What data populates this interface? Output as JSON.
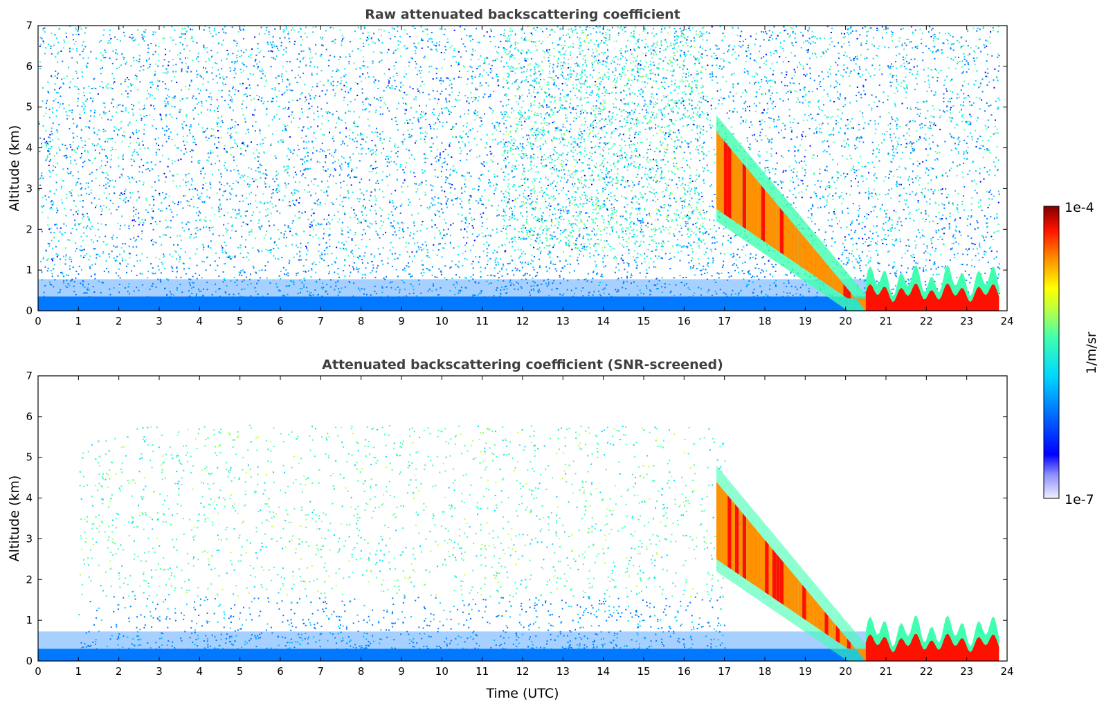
{
  "figure": {
    "xlabel": "Time (UTC)",
    "colorbar": {
      "label": "1/m/sr",
      "min_label": "1e-7",
      "max_label": "1e-4",
      "min": 1e-07,
      "max": 0.0001,
      "scale": "log",
      "colormap": "jet",
      "colors": [
        "#ffffff",
        "#c8c8ff",
        "#0000ff",
        "#00a0ff",
        "#00ffd0",
        "#c0ff40",
        "#ffff00",
        "#ff8000",
        "#ff0000",
        "#800000"
      ]
    }
  },
  "chart_data": [
    {
      "type": "heatmap",
      "title": "Raw attenuated backscattering coefficient",
      "xlabel": "",
      "ylabel": "Altitude (km)",
      "xlim": [
        0,
        24
      ],
      "ylim": [
        0,
        7
      ],
      "xticks": [
        "0",
        "1",
        "2",
        "3",
        "4",
        "5",
        "6",
        "7",
        "8",
        "9",
        "10",
        "11",
        "12",
        "13",
        "14",
        "15",
        "16",
        "17",
        "18",
        "19",
        "20",
        "21",
        "22",
        "23",
        "24"
      ],
      "yticks": [
        "0",
        "1",
        "2",
        "3",
        "4",
        "5",
        "6",
        "7"
      ],
      "grid": false,
      "features": [
        {
          "description": "near-surface blue layer",
          "x": [
            0,
            20.6
          ],
          "y": [
            0,
            0.35
          ],
          "level": 1e-06
        },
        {
          "description": "sparse noise field",
          "x": [
            0,
            23.8
          ],
          "y": [
            0.35,
            7
          ],
          "level": 5e-07
        },
        {
          "description": "green aerosol plume",
          "x": [
            11.5,
            16.5
          ],
          "y": [
            1.5,
            7
          ],
          "level": 3e-06
        },
        {
          "description": "descending aerosol layer",
          "x": [
            16.8,
            20.5
          ],
          "y_top": [
            4.4,
            0
          ],
          "y_bottom": [
            2.5,
            0
          ],
          "level": 3e-05
        },
        {
          "description": "boundary layer",
          "x": [
            20.5,
            23.8
          ],
          "y": [
            0,
            1.0
          ],
          "level": 5e-05
        }
      ]
    },
    {
      "type": "heatmap",
      "title": "Attenuated backscattering coefficient (SNR-screened)",
      "xlabel": "Time (UTC)",
      "ylabel": "Altitude (km)",
      "xlim": [
        0,
        24
      ],
      "ylim": [
        0,
        7
      ],
      "xticks": [
        "0",
        "1",
        "2",
        "3",
        "4",
        "5",
        "6",
        "7",
        "8",
        "9",
        "10",
        "11",
        "12",
        "13",
        "14",
        "15",
        "16",
        "17",
        "18",
        "19",
        "20",
        "21",
        "22",
        "23",
        "24"
      ],
      "yticks": [
        "0",
        "1",
        "2",
        "3",
        "4",
        "5",
        "6",
        "7"
      ],
      "grid": false,
      "features": [
        {
          "description": "near-surface blue layer",
          "x": [
            0,
            20.6
          ],
          "y": [
            0,
            0.3
          ],
          "level": 1e-06
        },
        {
          "description": "screened sparse aerosol",
          "x": [
            1,
            17
          ],
          "y": [
            0.3,
            5.8
          ],
          "level": 2e-06
        },
        {
          "description": "descending aerosol layer",
          "x": [
            16.8,
            20.5
          ],
          "y_top": [
            4.4,
            0
          ],
          "y_bottom": [
            2.5,
            0
          ],
          "level": 3e-05
        },
        {
          "description": "boundary layer",
          "x": [
            20.5,
            23.8
          ],
          "y": [
            0,
            1.0
          ],
          "level": 5e-05
        }
      ]
    }
  ]
}
